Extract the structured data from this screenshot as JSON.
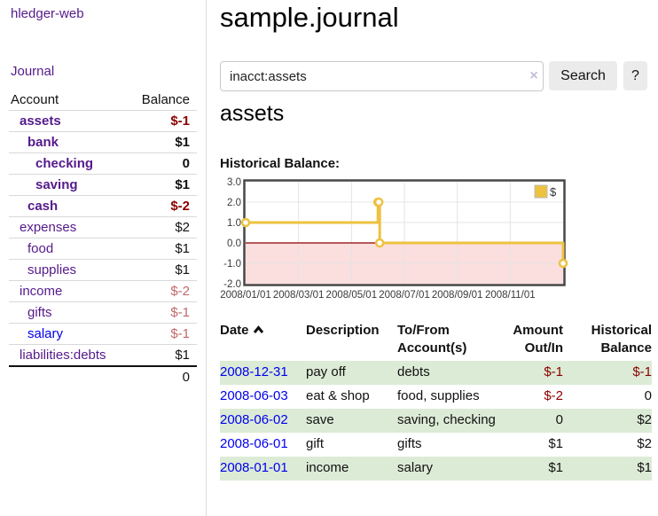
{
  "app": {
    "title": "hledger-web"
  },
  "sidebar": {
    "journal_link": "Journal",
    "accounts": {
      "col_account": "Account",
      "col_balance": "Balance",
      "rows": [
        {
          "name": "assets",
          "indent": 1,
          "bold": true,
          "balance": "$-1",
          "neg": "strong"
        },
        {
          "name": "bank",
          "indent": 2,
          "bold": true,
          "balance": "$1",
          "neg": null
        },
        {
          "name": "checking",
          "indent": 3,
          "bold": true,
          "balance": "0",
          "neg": null
        },
        {
          "name": "saving",
          "indent": 3,
          "bold": true,
          "balance": "$1",
          "neg": null
        },
        {
          "name": "cash",
          "indent": 2,
          "bold": true,
          "balance": "$-2",
          "neg": "strong"
        },
        {
          "name": "expenses",
          "indent": 1,
          "bold": false,
          "balance": "$2",
          "neg": null
        },
        {
          "name": "food",
          "indent": 2,
          "bold": false,
          "balance": "$1",
          "neg": null
        },
        {
          "name": "supplies",
          "indent": 2,
          "bold": false,
          "balance": "$1",
          "neg": null
        },
        {
          "name": "income",
          "indent": 1,
          "bold": false,
          "balance": "$-2",
          "neg": "soft"
        },
        {
          "name": "gifts",
          "indent": 2,
          "bold": false,
          "balance": "$-1",
          "neg": "soft"
        },
        {
          "name": "salary",
          "indent": 2,
          "bold": false,
          "balance": "$-1",
          "neg": "soft",
          "unvisited": true
        },
        {
          "name": "liabilities:debts",
          "indent": 1,
          "bold": false,
          "balance": "$1",
          "neg": null
        }
      ],
      "total": "0"
    }
  },
  "main": {
    "title": "sample.journal",
    "search": {
      "value": "inacct:assets",
      "clear_icon": "×",
      "button_label": "Search",
      "help_label": "?"
    },
    "account_heading": "assets",
    "chart_label": "Historical Balance:",
    "register": {
      "headers": {
        "date": "Date",
        "description": "Description",
        "accounts": "To/From Account(s)",
        "amount": "Amount Out/In",
        "balance": "Historical Balance"
      },
      "sort": "ascending",
      "rows": [
        {
          "date": "2008-12-31",
          "description": "pay off",
          "accounts": "debts",
          "amount": "$-1",
          "amount_neg": true,
          "balance": "$-1",
          "balance_neg": true,
          "striped": true
        },
        {
          "date": "2008-06-03",
          "description": "eat & shop",
          "accounts": "food, supplies",
          "amount": "$-2",
          "amount_neg": true,
          "balance": "0",
          "balance_neg": false,
          "striped": false
        },
        {
          "date": "2008-06-02",
          "description": "save",
          "accounts": "saving, checking",
          "amount": "0",
          "amount_neg": false,
          "balance": "$2",
          "balance_neg": false,
          "striped": true
        },
        {
          "date": "2008-06-01",
          "description": "gift",
          "accounts": "gifts",
          "amount": "$1",
          "amount_neg": false,
          "balance": "$2",
          "balance_neg": false,
          "striped": false
        },
        {
          "date": "2008-01-01",
          "description": "income",
          "accounts": "salary",
          "amount": "$1",
          "amount_neg": false,
          "balance": "$1",
          "balance_neg": false,
          "striped": true
        }
      ]
    }
  },
  "chart_data": {
    "type": "line",
    "style": "step",
    "title": "Historical Balance:",
    "series": [
      {
        "name": "$",
        "color": "#edc240",
        "points": [
          [
            "2008-01-01",
            1
          ],
          [
            "2008-06-01",
            2
          ],
          [
            "2008-06-02",
            2
          ],
          [
            "2008-06-03",
            0
          ],
          [
            "2008-12-31",
            -1
          ]
        ]
      }
    ],
    "ylim": [
      -2.0,
      3.0
    ],
    "yticks": [
      3.0,
      2.0,
      1.0,
      0.0,
      -1.0,
      -2.0
    ],
    "xticks": [
      "2008/01/01",
      "2008/03/01",
      "2008/05/01",
      "2008/07/01",
      "2008/09/01",
      "2008/11/01"
    ],
    "x_range_months": 12,
    "grid": true,
    "legend_position": "top-right",
    "negative_fill": "#fbdede",
    "zero_line_color": "#8b0000",
    "grid_color": "#e4e4e4",
    "border_color": "#474747"
  },
  "colors": {
    "link_visited": "#551A8B",
    "link_unvisited": "#0000EE",
    "negative_strong": "#8b0000",
    "negative_soft": "#c0686a",
    "stripe_green": "#dcebd6",
    "button_bg": "#ebebeb"
  }
}
